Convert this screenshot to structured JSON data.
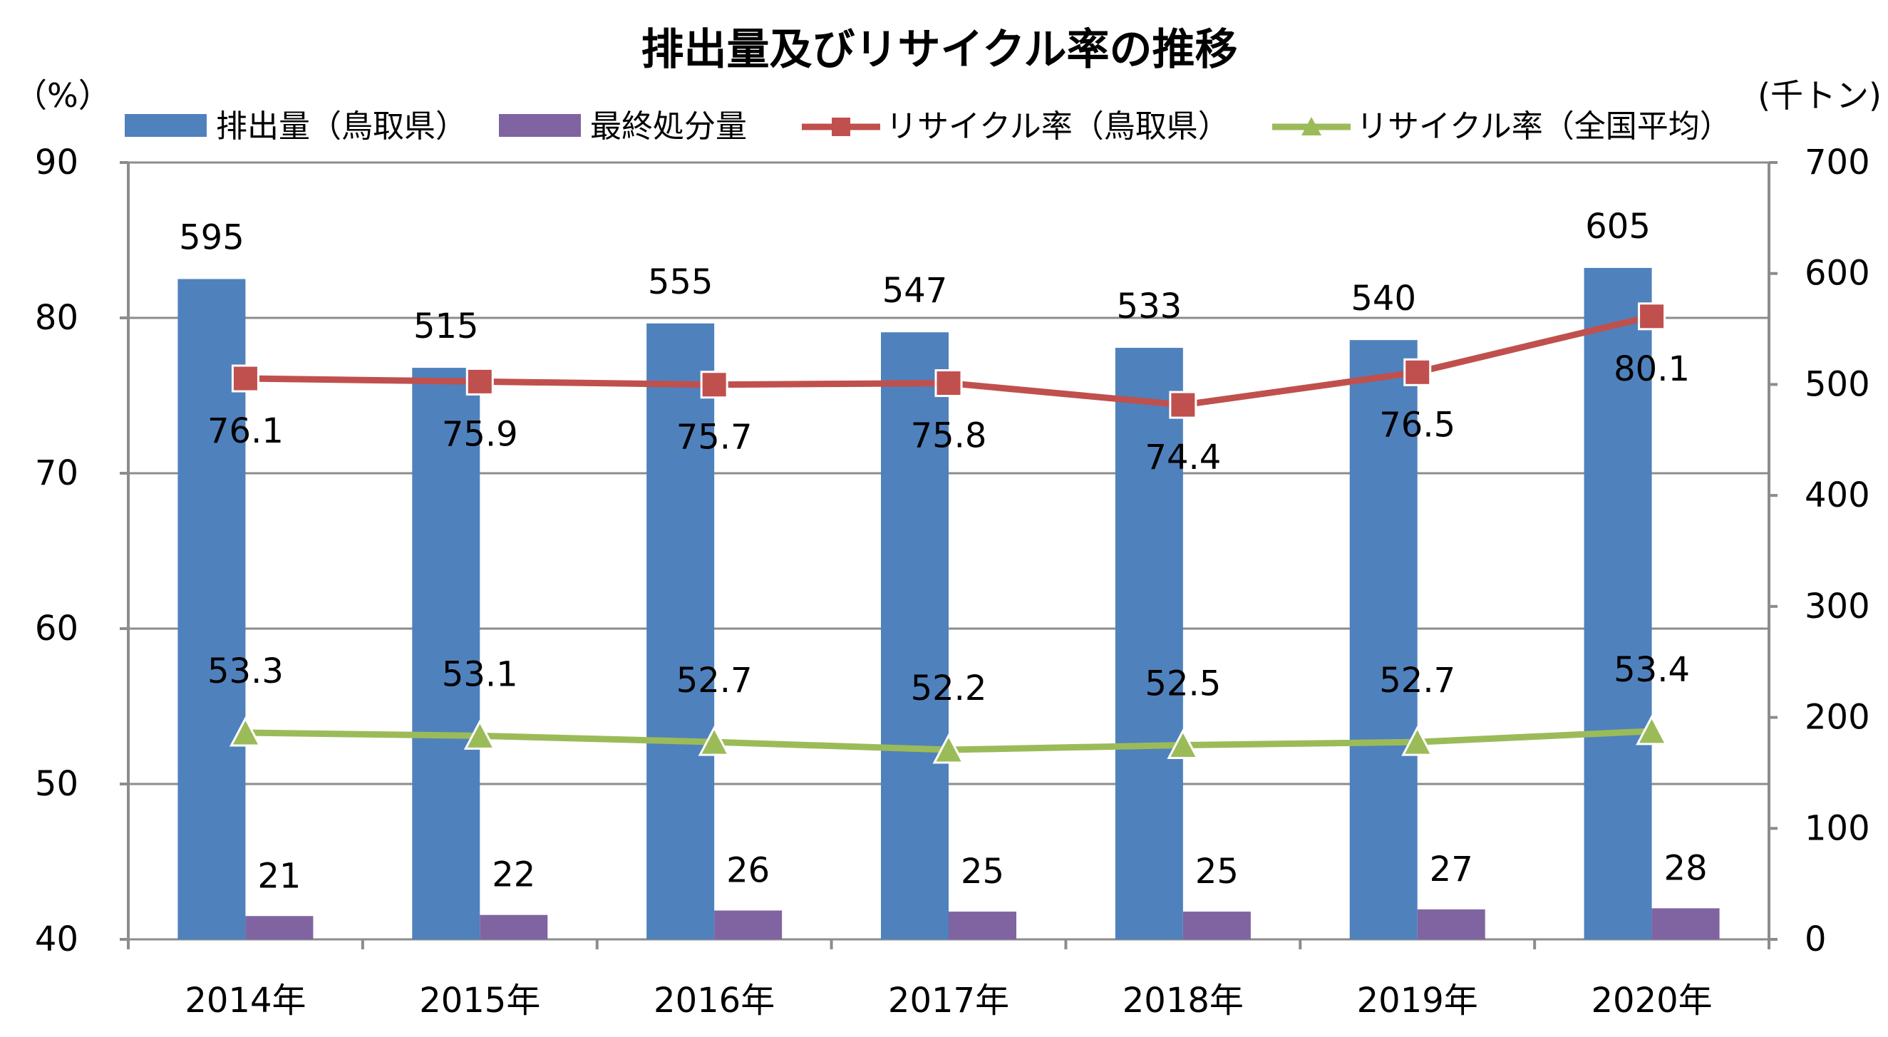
{
  "chart_data": {
    "type": "bar+line",
    "title": "排出量及びリサイクル率の推移",
    "categories": [
      "2014年",
      "2015年",
      "2016年",
      "2017年",
      "2018年",
      "2019年",
      "2020年"
    ],
    "left_axis": {
      "unit": "（%）",
      "ylim": [
        40,
        90
      ],
      "ticks": [
        "40",
        "50",
        "60",
        "70",
        "80",
        "90"
      ]
    },
    "right_axis": {
      "unit": "(千トン)",
      "ylim": [
        0,
        700
      ],
      "ticks": [
        "0",
        "100",
        "200",
        "300",
        "400",
        "500",
        "600",
        "700"
      ]
    },
    "grid": true,
    "legend_position": "top",
    "series": [
      {
        "name": "排出量（鳥取県）",
        "kind": "bar",
        "axis": "right",
        "color": "#4f81bd",
        "values": [
          595,
          515,
          555,
          547,
          533,
          540,
          605
        ],
        "labels": [
          "595",
          "515",
          "555",
          "547",
          "533",
          "540",
          "605"
        ]
      },
      {
        "name": "最終処分量",
        "kind": "bar",
        "axis": "right",
        "color": "#8064a2",
        "values": [
          21,
          22,
          26,
          25,
          25,
          27,
          28
        ],
        "labels": [
          "21",
          "22",
          "26",
          "25",
          "25",
          "27",
          "28"
        ]
      },
      {
        "name": "リサイクル率（鳥取県）",
        "kind": "line",
        "marker": "square",
        "axis": "left",
        "color": "#c0504d",
        "values": [
          76.1,
          75.9,
          75.7,
          75.8,
          74.4,
          76.5,
          80.1
        ],
        "labels": [
          "76.1",
          "75.9",
          "75.7",
          "75.8",
          "74.4",
          "76.5",
          "80.1"
        ]
      },
      {
        "name": "リサイクル率（全国平均）",
        "kind": "line",
        "marker": "triangle",
        "axis": "left",
        "color": "#9bbb59",
        "values": [
          53.3,
          53.1,
          52.7,
          52.2,
          52.5,
          52.7,
          53.4
        ],
        "labels": [
          "53.3",
          "53.1",
          "52.7",
          "52.2",
          "52.5",
          "52.7",
          "53.4"
        ]
      }
    ]
  }
}
